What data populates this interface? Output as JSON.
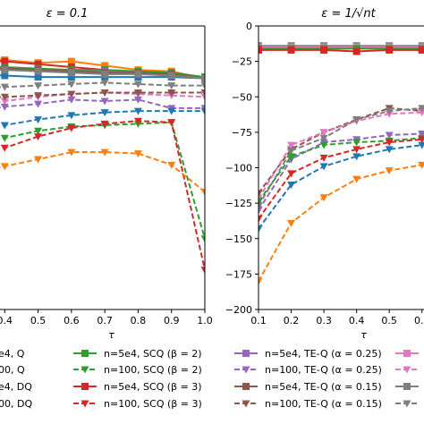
{
  "chart_data": [
    {
      "type": "line",
      "panel": "left",
      "title": "ε = 0.1",
      "xlabel": "τ",
      "ylabel": "",
      "xlim": [
        0.3,
        1.0
      ],
      "ylim": [
        -200,
        0
      ],
      "x_ticks": [
        "0.4",
        "0.5",
        "0.6",
        "0.7",
        "0.8",
        "0.9",
        "1.0"
      ],
      "grid": false,
      "series": [
        {
          "color": "#ff7f0e",
          "dash": false,
          "marker": "square",
          "x": [
            0.3,
            0.4,
            0.5,
            0.6,
            0.7,
            0.8,
            0.9,
            1.0
          ],
          "y": [
            -22,
            -24,
            -26,
            -25,
            -28,
            -31,
            -32,
            -37
          ]
        },
        {
          "color": "#d62728",
          "dash": false,
          "marker": "square",
          "x": [
            0.3,
            0.4,
            0.5,
            0.6,
            0.7,
            0.8,
            0.9,
            1.0
          ],
          "y": [
            -24,
            -25,
            -27,
            -29,
            -31,
            -33,
            -34,
            -37
          ]
        },
        {
          "color": "#2ca02c",
          "dash": false,
          "marker": "square",
          "x": [
            0.3,
            0.4,
            0.5,
            0.6,
            0.7,
            0.8,
            0.9,
            1.0
          ],
          "y": [
            -28,
            -29,
            -30,
            -31,
            -31,
            -32,
            -33,
            -36
          ]
        },
        {
          "color": "#9467bd",
          "dash": false,
          "marker": "square",
          "x": [
            0.3,
            0.4,
            0.5,
            0.6,
            0.7,
            0.8,
            0.9,
            1.0
          ],
          "y": [
            -31,
            -31,
            -31,
            -32,
            -32,
            -33,
            -34,
            -37
          ]
        },
        {
          "color": "#1f77b4",
          "dash": false,
          "marker": "square",
          "x": [
            0.3,
            0.4,
            0.5,
            0.6,
            0.7,
            0.8,
            0.9,
            1.0
          ],
          "y": [
            -34,
            -35,
            -36,
            -36,
            -36,
            -36,
            -36,
            -37
          ]
        },
        {
          "color": "#8c564b",
          "dash": false,
          "marker": "square",
          "x": [
            0.3,
            0.4,
            0.5,
            0.6,
            0.7,
            0.8,
            0.9,
            1.0
          ],
          "y": [
            -29,
            -30,
            -31,
            -32,
            -33,
            -33,
            -34,
            -37
          ]
        },
        {
          "color": "#7f7f7f",
          "dash": false,
          "marker": "square",
          "x": [
            0.3,
            0.4,
            0.5,
            0.6,
            0.7,
            0.8,
            0.9,
            1.0
          ],
          "y": [
            -30,
            -31,
            -32,
            -33,
            -34,
            -34,
            -35,
            -37
          ]
        },
        {
          "color": "#7f7f7f",
          "dash": true,
          "marker": "triangle",
          "x": [
            0.3,
            0.4,
            0.5,
            0.6,
            0.7,
            0.8,
            0.9,
            1.0
          ],
          "y": [
            -44,
            -43,
            -42,
            -41,
            -40,
            -41,
            -42,
            -42
          ]
        },
        {
          "color": "#e377c2",
          "dash": true,
          "marker": "triangle",
          "x": [
            0.3,
            0.4,
            0.5,
            0.6,
            0.7,
            0.8,
            0.9,
            1.0
          ],
          "y": [
            -57,
            -53,
            -50,
            -48,
            -47,
            -48,
            -49,
            -50
          ]
        },
        {
          "color": "#8c564b",
          "dash": true,
          "marker": "triangle",
          "x": [
            0.3,
            0.4,
            0.5,
            0.6,
            0.7,
            0.8,
            0.9,
            1.0
          ],
          "y": [
            -51,
            -50,
            -49,
            -48,
            -47,
            -47,
            -47,
            -47
          ]
        },
        {
          "color": "#9467bd",
          "dash": true,
          "marker": "triangle",
          "x": [
            0.3,
            0.4,
            0.5,
            0.6,
            0.7,
            0.8,
            0.9,
            1.0
          ],
          "y": [
            -60,
            -57,
            -55,
            -52,
            -53,
            -52,
            -58,
            -58
          ]
        },
        {
          "color": "#1f77b4",
          "dash": true,
          "marker": "triangle",
          "x": [
            0.3,
            0.4,
            0.5,
            0.6,
            0.7,
            0.8,
            0.9,
            1.0
          ],
          "y": [
            -76,
            -70,
            -66,
            -63,
            -61,
            -60,
            -60,
            -60
          ]
        },
        {
          "color": "#2ca02c",
          "dash": true,
          "marker": "triangle",
          "x": [
            0.3,
            0.4,
            0.5,
            0.6,
            0.7,
            0.8,
            0.9,
            1.0
          ],
          "y": [
            -85,
            -79,
            -74,
            -71,
            -70,
            -69,
            -68,
            -150
          ]
        },
        {
          "color": "#d62728",
          "dash": true,
          "marker": "triangle",
          "x": [
            0.3,
            0.4,
            0.5,
            0.6,
            0.7,
            0.8,
            0.9,
            1.0
          ],
          "y": [
            -92,
            -86,
            -78,
            -72,
            -69,
            -67,
            -68,
            -172
          ]
        },
        {
          "color": "#ff7f0e",
          "dash": true,
          "marker": "triangle",
          "x": [
            0.3,
            0.4,
            0.5,
            0.6,
            0.7,
            0.8,
            0.9,
            1.0
          ],
          "y": [
            -103,
            -99,
            -94,
            -89,
            -89,
            -90,
            -98,
            -117
          ]
        }
      ]
    },
    {
      "type": "line",
      "panel": "right",
      "title": "ε = 1/√nt",
      "xlabel": "τ",
      "ylabel": "",
      "xlim": [
        0.1,
        0.65
      ],
      "ylim": [
        -200,
        0
      ],
      "y_ticks": [
        "0",
        "−25",
        "−50",
        "−75",
        "−100",
        "−125",
        "−150",
        "−175",
        "−200"
      ],
      "x_ticks": [
        "0.1",
        "0.2",
        "0.3",
        "0.4",
        "0.5",
        "0.6"
      ],
      "grid": false,
      "series": [
        {
          "color": "#7f7f7f",
          "dash": false,
          "marker": "square",
          "x": [
            0.1,
            0.2,
            0.3,
            0.4,
            0.5,
            0.6,
            0.65
          ],
          "y": [
            -14,
            -14,
            -14,
            -14,
            -14,
            -14,
            -14
          ]
        },
        {
          "color": "#e377c2",
          "dash": false,
          "marker": "square",
          "x": [
            0.1,
            0.2,
            0.3,
            0.4,
            0.5,
            0.6,
            0.65
          ],
          "y": [
            -15,
            -15,
            -15,
            -15,
            -15,
            -15,
            -15
          ]
        },
        {
          "color": "#2ca02c",
          "dash": false,
          "marker": "square",
          "x": [
            0.1,
            0.2,
            0.3,
            0.4,
            0.5,
            0.6,
            0.65
          ],
          "y": [
            -16,
            -16,
            -16,
            -16,
            -16,
            -16,
            -16
          ]
        },
        {
          "color": "#d62728",
          "dash": false,
          "marker": "square",
          "x": [
            0.1,
            0.2,
            0.3,
            0.4,
            0.5,
            0.6,
            0.65
          ],
          "y": [
            -17,
            -17,
            -17,
            -18,
            -17,
            -17,
            -17
          ]
        },
        {
          "color": "#8c564b",
          "dash": true,
          "marker": "triangle",
          "x": [
            0.1,
            0.2,
            0.3,
            0.4,
            0.5,
            0.6,
            0.65
          ],
          "y": [
            -118,
            -87,
            -75,
            -66,
            -58,
            -60,
            -56
          ]
        },
        {
          "color": "#e377c2",
          "dash": true,
          "marker": "triangle",
          "x": [
            0.1,
            0.2,
            0.3,
            0.4,
            0.5,
            0.6,
            0.65
          ],
          "y": [
            -122,
            -84,
            -75,
            -67,
            -62,
            -61,
            -58
          ]
        },
        {
          "color": "#7f7f7f",
          "dash": true,
          "marker": "triangle",
          "x": [
            0.1,
            0.2,
            0.3,
            0.4,
            0.5,
            0.6,
            0.65
          ],
          "y": [
            -127,
            -88,
            -79,
            -66,
            -60,
            -58,
            -56
          ]
        },
        {
          "color": "#9467bd",
          "dash": true,
          "marker": "triangle",
          "x": [
            0.1,
            0.2,
            0.3,
            0.4,
            0.5,
            0.6,
            0.65
          ],
          "y": [
            -130,
            -94,
            -82,
            -80,
            -77,
            -76,
            -74
          ]
        },
        {
          "color": "#2ca02c",
          "dash": true,
          "marker": "triangle",
          "x": [
            0.1,
            0.2,
            0.3,
            0.4,
            0.5,
            0.6,
            0.65
          ],
          "y": [
            -124,
            -92,
            -84,
            -82,
            -81,
            -79,
            -78
          ]
        },
        {
          "color": "#d62728",
          "dash": true,
          "marker": "triangle",
          "x": [
            0.1,
            0.2,
            0.3,
            0.4,
            0.5,
            0.6,
            0.65
          ],
          "y": [
            -136,
            -104,
            -93,
            -87,
            -82,
            -80,
            -78
          ]
        },
        {
          "color": "#1f77b4",
          "dash": true,
          "marker": "triangle",
          "x": [
            0.1,
            0.2,
            0.3,
            0.4,
            0.5,
            0.6,
            0.65
          ],
          "y": [
            -143,
            -112,
            -99,
            -92,
            -87,
            -84,
            -82
          ]
        },
        {
          "color": "#ff7f0e",
          "dash": true,
          "marker": "triangle",
          "x": [
            0.1,
            0.2,
            0.3,
            0.4,
            0.5,
            0.6,
            0.65
          ],
          "y": [
            -180,
            -139,
            -121,
            -108,
            -102,
            -98,
            -95
          ]
        }
      ]
    }
  ],
  "legend": {
    "placement": "bottom",
    "entries": [
      {
        "label": "e4, Q",
        "color": "#1f77b4",
        "dash": false,
        "marker": "square"
      },
      {
        "label": "00, Q",
        "color": "#1f77b4",
        "dash": true,
        "marker": "triangle"
      },
      {
        "label": "e4, DQ",
        "color": "#ff7f0e",
        "dash": false,
        "marker": "square"
      },
      {
        "label": "00, DQ",
        "color": "#ff7f0e",
        "dash": true,
        "marker": "triangle"
      },
      {
        "label": "n=5e4, SCQ (β = 2)",
        "color": "#2ca02c",
        "dash": false,
        "marker": "square"
      },
      {
        "label": "n=100, SCQ (β = 2)",
        "color": "#2ca02c",
        "dash": true,
        "marker": "triangle"
      },
      {
        "label": "n=5e4, SCQ (β = 3)",
        "color": "#d62728",
        "dash": false,
        "marker": "square"
      },
      {
        "label": "n=100, SCQ (β = 3)",
        "color": "#d62728",
        "dash": true,
        "marker": "triangle"
      },
      {
        "label": "n=5e4, TE-Q (α = 0.25)",
        "color": "#9467bd",
        "dash": false,
        "marker": "square"
      },
      {
        "label": "n=100, TE-Q (α = 0.25)",
        "color": "#9467bd",
        "dash": true,
        "marker": "triangle"
      },
      {
        "label": "n=5e4, TE-Q (α = 0.15)",
        "color": "#8c564b",
        "dash": false,
        "marker": "square"
      },
      {
        "label": "n=100, TE-Q (α = 0.15)",
        "color": "#8c564b",
        "dash": true,
        "marker": "triangle"
      },
      {
        "label": "n=5e",
        "color": "#e377c2",
        "dash": false,
        "marker": "square"
      },
      {
        "label": "n=10",
        "color": "#e377c2",
        "dash": true,
        "marker": "triangle"
      },
      {
        "label": "n=5e",
        "color": "#7f7f7f",
        "dash": false,
        "marker": "square"
      },
      {
        "label": "n=10",
        "color": "#7f7f7f",
        "dash": true,
        "marker": "triangle"
      }
    ]
  }
}
